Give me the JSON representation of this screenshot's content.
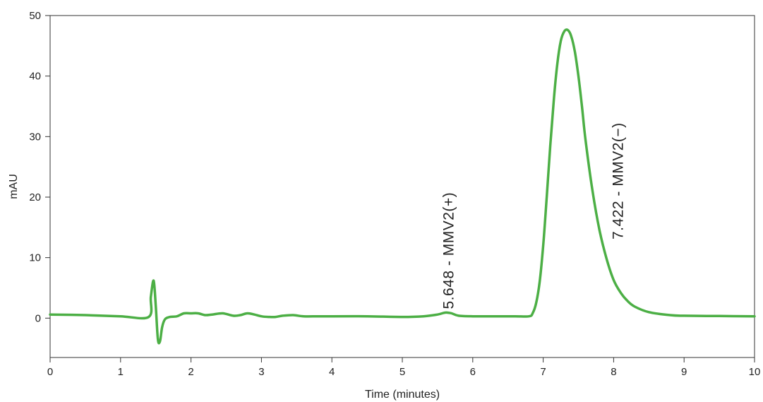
{
  "chart_data": {
    "type": "line",
    "title": "",
    "xlabel": "Time (minutes)",
    "ylabel": "mAU",
    "xlim": [
      0,
      10
    ],
    "ylim": [
      -6.5,
      50
    ],
    "xticks": [
      "0",
      "1",
      "2",
      "3",
      "4",
      "5",
      "6",
      "7",
      "8",
      "9",
      "10"
    ],
    "yticks": [
      "0",
      "10",
      "20",
      "30",
      "40",
      "50"
    ],
    "grid": false,
    "legend": "none",
    "series": [
      {
        "color": "#4caf45",
        "x": [
          0,
          0.5,
          1.0,
          1.4,
          1.43,
          1.47,
          1.5,
          1.53,
          1.56,
          1.59,
          1.63,
          1.7,
          1.8,
          1.9,
          2.0,
          2.1,
          2.2,
          2.3,
          2.45,
          2.6,
          2.7,
          2.8,
          2.9,
          3.0,
          3.1,
          3.2,
          3.3,
          3.45,
          3.6,
          3.8,
          4.0,
          4.5,
          5.0,
          5.3,
          5.5,
          5.6,
          5.65,
          5.7,
          5.8,
          6.0,
          6.3,
          6.6,
          6.8,
          6.85,
          6.9,
          6.95,
          7.0,
          7.05,
          7.1,
          7.15,
          7.2,
          7.25,
          7.3,
          7.35,
          7.4,
          7.45,
          7.5,
          7.55,
          7.6,
          7.7,
          7.8,
          7.9,
          8.0,
          8.1,
          8.2,
          8.3,
          8.5,
          8.8,
          9.0,
          9.5,
          10.0
        ],
        "y": [
          0.6,
          0.5,
          0.3,
          0.2,
          3.5,
          6.2,
          2.0,
          -3.5,
          -3.8,
          -1.5,
          -0.2,
          0.2,
          0.3,
          0.8,
          0.8,
          0.8,
          0.5,
          0.6,
          0.8,
          0.4,
          0.5,
          0.8,
          0.6,
          0.3,
          0.2,
          0.2,
          0.4,
          0.5,
          0.3,
          0.3,
          0.3,
          0.3,
          0.2,
          0.3,
          0.6,
          0.9,
          0.9,
          0.8,
          0.4,
          0.3,
          0.3,
          0.3,
          0.3,
          0.8,
          2.5,
          6.0,
          12.0,
          20.0,
          28.5,
          36.0,
          42.0,
          45.8,
          47.4,
          47.6,
          46.5,
          44.0,
          40.0,
          35.0,
          29.5,
          21.0,
          14.5,
          9.8,
          6.3,
          4.2,
          2.8,
          1.9,
          1.0,
          0.5,
          0.4,
          0.35,
          0.3
        ]
      }
    ],
    "annotations": [
      {
        "text": "5.648 - MMV2(+)",
        "x": 5.648,
        "y": 1.5
      },
      {
        "text": "7.422 - MMV2(−)",
        "x": 8.05,
        "y": 13.0
      }
    ]
  }
}
